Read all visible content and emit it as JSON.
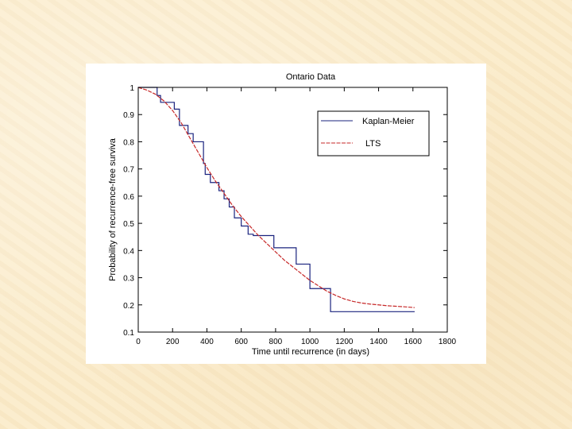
{
  "chart_data": {
    "type": "line",
    "title": "Ontario Data",
    "xlabel": "Time until recurrence (in days)",
    "ylabel": "Probability of recurrence-free surviva",
    "xlim": [
      0,
      1800
    ],
    "ylim": [
      0.1,
      1.0
    ],
    "x_ticks": [
      0,
      200,
      400,
      600,
      800,
      1000,
      1200,
      1400,
      1600,
      1800
    ],
    "x_tick_labels": [
      "0",
      "200",
      "400",
      "600",
      "800",
      "1000",
      "1200",
      "1400",
      "1600",
      "1800"
    ],
    "y_ticks": [
      0.1,
      0.2,
      0.3,
      0.4,
      0.5,
      0.6,
      0.7,
      0.8,
      0.9,
      1.0
    ],
    "y_tick_labels": [
      "0.1",
      "0.2",
      "0.3",
      "0.4",
      "0.5",
      "0.6",
      "0.7",
      "0.8",
      "0.9",
      "1"
    ],
    "grid": false,
    "legend_position": "top-right",
    "series": [
      {
        "name": "Kaplan-Meier",
        "style": "step",
        "color": "#1a237e",
        "x": [
          0,
          110,
          130,
          210,
          240,
          290,
          320,
          380,
          390,
          420,
          470,
          500,
          530,
          560,
          600,
          640,
          670,
          790,
          920,
          1000,
          1120,
          1610
        ],
        "y": [
          1.0,
          0.97,
          0.945,
          0.92,
          0.86,
          0.83,
          0.8,
          0.72,
          0.68,
          0.65,
          0.62,
          0.59,
          0.56,
          0.52,
          0.49,
          0.46,
          0.455,
          0.41,
          0.35,
          0.26,
          0.175,
          0.175
        ]
      },
      {
        "name": "LTS",
        "style": "line",
        "color": "#c62828",
        "x": [
          0,
          50,
          100,
          150,
          200,
          250,
          300,
          350,
          400,
          450,
          500,
          550,
          600,
          650,
          700,
          750,
          800,
          850,
          900,
          950,
          1000,
          1050,
          1100,
          1150,
          1200,
          1250,
          1300,
          1350,
          1400,
          1450,
          1500,
          1550,
          1610
        ],
        "y": [
          1.0,
          0.99,
          0.975,
          0.95,
          0.915,
          0.87,
          0.815,
          0.76,
          0.705,
          0.655,
          0.61,
          0.565,
          0.525,
          0.49,
          0.455,
          0.425,
          0.395,
          0.365,
          0.34,
          0.315,
          0.29,
          0.27,
          0.25,
          0.235,
          0.222,
          0.213,
          0.207,
          0.203,
          0.2,
          0.197,
          0.195,
          0.193,
          0.19
        ]
      }
    ]
  }
}
